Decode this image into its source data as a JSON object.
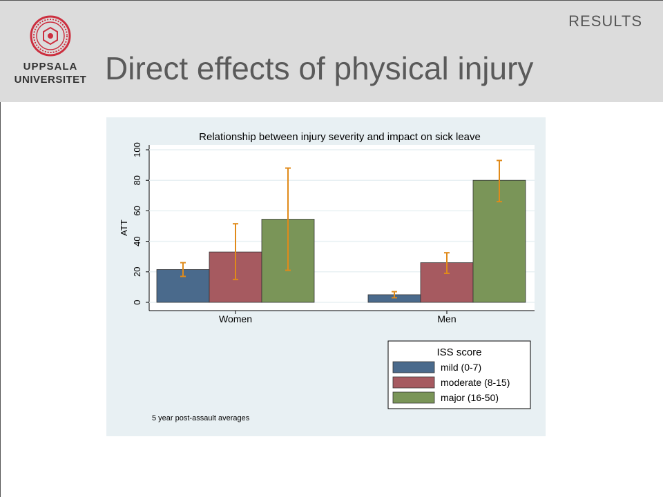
{
  "header": {
    "section_label": "RESULTS",
    "title": "Direct effects of physical injury",
    "logo_line1": "UPPSALA",
    "logo_line2": "UNIVERSITET"
  },
  "colors": {
    "header_band": "#dcdcdc",
    "chart_bg": "#e8f0f3",
    "mild": "#4a6a8c",
    "moderate": "#a65a60",
    "major": "#7a9558",
    "error_bar": "#e08a1a",
    "logo": "#cc2f3f"
  },
  "chart_data": {
    "type": "bar",
    "title": "Relationship between injury severity and impact on sick leave",
    "xlabel": "",
    "ylabel": "ATT",
    "ylim": [
      0,
      100
    ],
    "yticks": [
      0,
      20,
      40,
      60,
      80,
      100
    ],
    "categories": [
      "Women",
      "Men"
    ],
    "series": [
      {
        "name": "mild (0-7)",
        "values": [
          21.5,
          5
        ],
        "err_low": [
          17,
          3
        ],
        "err_high": [
          26,
          7
        ]
      },
      {
        "name": "moderate (8-15)",
        "values": [
          33,
          26
        ],
        "err_low": [
          15,
          19
        ],
        "err_high": [
          51.5,
          32.5
        ]
      },
      {
        "name": "major (16-50)",
        "values": [
          54.5,
          80
        ],
        "err_low": [
          21,
          66
        ],
        "err_high": [
          88,
          93
        ]
      }
    ],
    "legend_title": "ISS score",
    "legend_position": "bottom-right",
    "note": "5 year post-assault averages",
    "grid": true
  }
}
